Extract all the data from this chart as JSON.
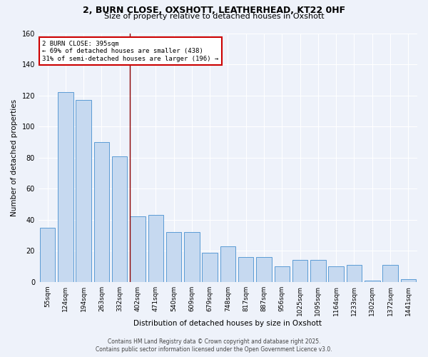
{
  "title_line1": "2, BURN CLOSE, OXSHOTT, LEATHERHEAD, KT22 0HF",
  "title_line2": "Size of property relative to detached houses in Oxshott",
  "xlabel": "Distribution of detached houses by size in Oxshott",
  "ylabel": "Number of detached properties",
  "categories": [
    "55sqm",
    "124sqm",
    "194sqm",
    "263sqm",
    "332sqm",
    "402sqm",
    "471sqm",
    "540sqm",
    "609sqm",
    "679sqm",
    "748sqm",
    "817sqm",
    "887sqm",
    "956sqm",
    "1025sqm",
    "1095sqm",
    "1164sqm",
    "1233sqm",
    "1302sqm",
    "1372sqm",
    "1441sqm"
  ],
  "values": [
    35,
    122,
    117,
    90,
    81,
    42,
    43,
    32,
    32,
    19,
    23,
    16,
    16,
    10,
    14,
    14,
    10,
    11,
    1,
    11,
    2
  ],
  "bar_color": "#c6d9f0",
  "bar_edge_color": "#5b9bd5",
  "vline_index": 5,
  "vline_color": "#8b0000",
  "annotation_box_facecolor": "#ffffff",
  "annotation_box_edgecolor": "#cc0000",
  "annotation_line1": "2 BURN CLOSE: 395sqm",
  "annotation_line2": "← 69% of detached houses are smaller (438)",
  "annotation_line3": "31% of semi-detached houses are larger (196) →",
  "ylim": [
    0,
    160
  ],
  "yticks": [
    0,
    20,
    40,
    60,
    80,
    100,
    120,
    140,
    160
  ],
  "background_color": "#eef2fa",
  "grid_color": "#ffffff",
  "footer_line1": "Contains HM Land Registry data © Crown copyright and database right 2025.",
  "footer_line2": "Contains public sector information licensed under the Open Government Licence v3.0."
}
